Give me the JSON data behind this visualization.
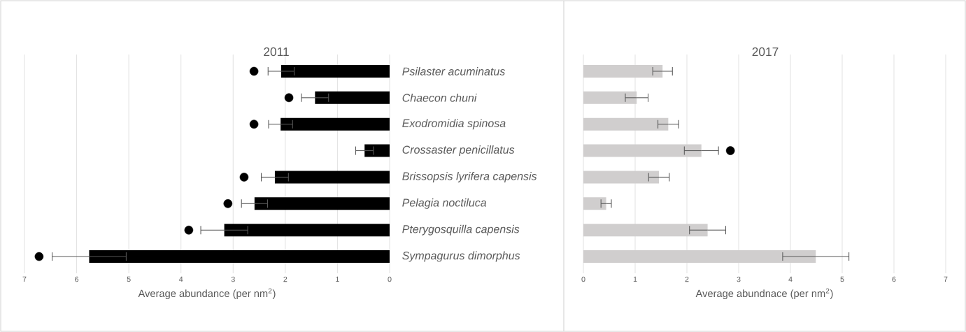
{
  "chart_data": [
    {
      "type": "bar",
      "orientation": "horizontal",
      "title": "2011",
      "xlabel": "Average abundance (per nm$^{2}$)",
      "categories": [
        "Psilaster acuminatus",
        "Chaecon chuni",
        "Exodromidia spinosa",
        "Crossaster penicillatus",
        "Brissopsis lyrifera capensis",
        "Pelagia noctiluca",
        "Pterygosquilla capensis",
        "Sympagurus dimorphus"
      ],
      "series": [
        {
          "color": "#000000",
          "values": [
            2.08,
            1.43,
            2.09,
            0.48,
            2.2,
            2.59,
            3.17,
            5.76
          ],
          "errors": [
            0.25,
            0.26,
            0.23,
            0.17,
            0.26,
            0.25,
            0.45,
            0.71
          ]
        },
        {
          "type": "scatter",
          "color": "#000000",
          "marker": "circle",
          "values": [
            2.6,
            1.93,
            2.6,
            null,
            2.79,
            3.1,
            3.85,
            6.72
          ]
        }
      ],
      "xlim": [
        7,
        0
      ],
      "xticks": [
        7,
        6,
        5,
        4,
        3,
        2,
        1,
        0
      ],
      "grid": "x"
    },
    {
      "type": "bar",
      "orientation": "horizontal",
      "title": "2017",
      "xlabel": "Average abundnace (per nm$^{2}$)",
      "categories": [
        null,
        null,
        null,
        null,
        null,
        null,
        null,
        null
      ],
      "series": [
        {
          "color": "#d0cece",
          "values": [
            1.53,
            1.03,
            1.64,
            2.28,
            1.46,
            0.44,
            2.4,
            4.49
          ],
          "errors": [
            0.19,
            0.22,
            0.2,
            0.33,
            0.2,
            0.1,
            0.35,
            0.64
          ]
        },
        {
          "type": "scatter",
          "color": "#000000",
          "marker": "circle",
          "values": [
            null,
            null,
            null,
            2.84,
            null,
            null,
            null,
            null
          ]
        }
      ],
      "xlim": [
        0,
        7
      ],
      "xticks": [
        0,
        1,
        2,
        3,
        4,
        5,
        6,
        7
      ],
      "grid": "x",
      "tick_labels": "x"
    }
  ]
}
